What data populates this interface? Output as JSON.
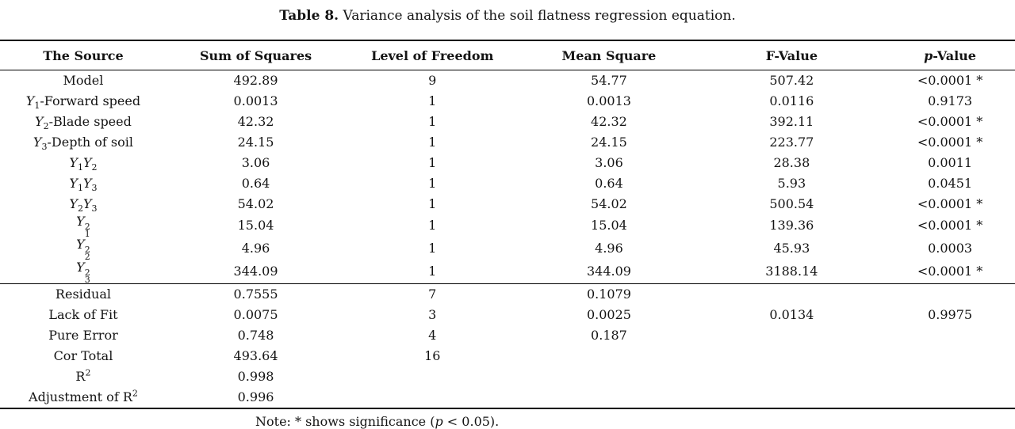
{
  "caption": {
    "label": "Table 8.",
    "text": " Variance analysis of the soil flatness regression equation."
  },
  "table": {
    "columns": [
      {
        "label": "The Source"
      },
      {
        "label": "Sum of Squares"
      },
      {
        "label": "Level of Freedom"
      },
      {
        "label": "Mean Square"
      },
      {
        "label": "F-Value"
      },
      {
        "label": "p-Value",
        "italic_first": true
      }
    ],
    "col_widths": [
      "16.4%",
      "17.6%",
      "17.2%",
      "17.6%",
      "18.4%",
      "12.8%"
    ],
    "sections": [
      {
        "rows": [
          {
            "source": "Model",
            "cells": [
              "492.89",
              "9",
              "54.77",
              "507.42",
              "<0.0001 *"
            ]
          },
          {
            "source": "Y_1-Forward speed",
            "cells": [
              "0.0013",
              "1",
              "0.0013",
              "0.0116",
              "0.9173"
            ]
          },
          {
            "source": "Y_2-Blade speed",
            "cells": [
              "42.32",
              "1",
              "42.32",
              "392.11",
              "<0.0001 *"
            ]
          },
          {
            "source": "Y_3-Depth of soil",
            "cells": [
              "24.15",
              "1",
              "24.15",
              "223.77",
              "<0.0001 *"
            ]
          },
          {
            "source": "Y_1Y_2",
            "cells": [
              "3.06",
              "1",
              "3.06",
              "28.38",
              "0.0011"
            ]
          },
          {
            "source": "Y_1Y_3",
            "cells": [
              "0.64",
              "1",
              "0.64",
              "5.93",
              "0.0451"
            ]
          },
          {
            "source": "Y_2Y_3",
            "cells": [
              "54.02",
              "1",
              "54.02",
              "500.54",
              "<0.0001 *"
            ]
          },
          {
            "source": "Y_1^2",
            "cells": [
              "15.04",
              "1",
              "15.04",
              "139.36",
              "<0.0001 *"
            ]
          },
          {
            "source": "Y_2^2",
            "cells": [
              "4.96",
              "1",
              "4.96",
              "45.93",
              "0.0003"
            ]
          },
          {
            "source": "Y_3^2",
            "cells": [
              "344.09",
              "1",
              "344.09",
              "3188.14",
              "<0.0001 *"
            ]
          }
        ]
      },
      {
        "rows": [
          {
            "source": "Residual",
            "cells": [
              "0.7555",
              "7",
              "0.1079",
              "",
              ""
            ]
          },
          {
            "source": "Lack of Fit",
            "cells": [
              "0.0075",
              "3",
              "0.0025",
              "0.0134",
              "0.9975"
            ]
          },
          {
            "source": "Pure Error",
            "cells": [
              "0.748",
              "4",
              "0.187",
              "",
              ""
            ]
          },
          {
            "source": "Cor Total",
            "cells": [
              "493.64",
              "16",
              "",
              "",
              ""
            ]
          },
          {
            "source": "R^2",
            "cells": [
              "0.998",
              "",
              "",
              "",
              ""
            ]
          },
          {
            "source": "Adjustment of R^2",
            "cells": [
              "0.996",
              "",
              "",
              "",
              ""
            ]
          }
        ]
      }
    ]
  },
  "footnote": {
    "prefix": "Note: * shows significance (",
    "italic_var": "p",
    "suffix": " < 0.05)."
  }
}
